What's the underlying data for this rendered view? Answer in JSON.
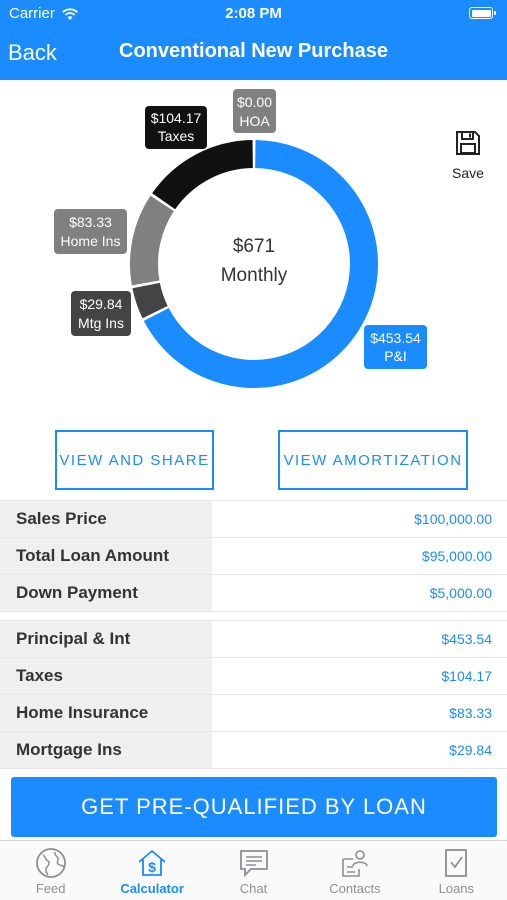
{
  "status_bar": {
    "carrier": "Carrier",
    "time": "2:08 PM"
  },
  "nav": {
    "back_label": "Back",
    "title": "Conventional New Purchase"
  },
  "chart": {
    "center_amount": "$671",
    "center_label": "Monthly",
    "segments": [
      {
        "name": "P&I",
        "amount": "$453.54",
        "value": 453.54,
        "color": "#1a8cff"
      },
      {
        "name": "Mtg Ins",
        "amount": "$29.84",
        "value": 29.84,
        "color": "#444444"
      },
      {
        "name": "Home Ins",
        "amount": "$83.33",
        "value": 83.33,
        "color": "#808080"
      },
      {
        "name": "Taxes",
        "amount": "$104.17",
        "value": 104.17,
        "color": "#111111"
      },
      {
        "name": "HOA",
        "amount": "$0.00",
        "value": 0,
        "color": "#808080"
      }
    ]
  },
  "save": {
    "label": "Save"
  },
  "actions": {
    "view_share": "VIEW AND SHARE",
    "view_amortization": "VIEW AMORTIZATION"
  },
  "loan_details": [
    {
      "label": "Sales Price",
      "value": "$100,000.00"
    },
    {
      "label": "Total Loan Amount",
      "value": "$95,000.00"
    },
    {
      "label": "Down Payment",
      "value": "$5,000.00"
    }
  ],
  "payment_details": [
    {
      "label": "Principal & Int",
      "value": "$453.54"
    },
    {
      "label": "Taxes",
      "value": "$104.17"
    },
    {
      "label": "Home Insurance",
      "value": "$83.33"
    },
    {
      "label": "Mortgage Ins",
      "value": "$29.84"
    }
  ],
  "cta": {
    "label": "GET PRE-QUALIFIED BY LOAN"
  },
  "tabs": [
    {
      "label": "Feed",
      "icon": "globe-icon",
      "active": false
    },
    {
      "label": "Calculator",
      "icon": "calculator-house-icon",
      "active": true
    },
    {
      "label": "Chat",
      "icon": "chat-icon",
      "active": false
    },
    {
      "label": "Contacts",
      "icon": "contacts-icon",
      "active": false
    },
    {
      "label": "Loans",
      "icon": "loans-document-icon",
      "active": false
    }
  ]
}
